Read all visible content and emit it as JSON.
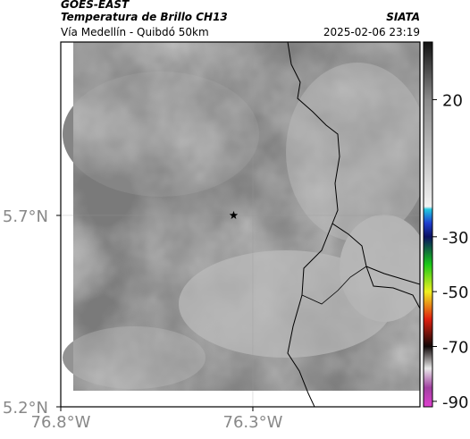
{
  "chart_data": {
    "type": "map",
    "title": "GOES-EAST",
    "subtitle": "Temperatura de Brillo CH13",
    "source": "SIATA",
    "region": "Vía Medellín - Quibdó 50km",
    "timestamp": "2025-02-06 23:19",
    "xlim": [
      -76.8,
      -75.865
    ],
    "ylim": [
      5.2,
      6.153
    ],
    "xticks": [
      {
        "value": -76.8,
        "label": "76.8°W"
      },
      {
        "value": -76.3,
        "label": "76.3°W"
      }
    ],
    "yticks": [
      {
        "value": 5.2,
        "label": "5.2°N"
      },
      {
        "value": 5.7,
        "label": "5.7°N"
      }
    ],
    "grid": true,
    "marker": {
      "lon": -76.35,
      "lat": 5.7
    },
    "clim": [
      -92,
      41
    ],
    "cticks": [
      20,
      -30,
      -50,
      -70,
      -90
    ],
    "colormap": [
      {
        "value": 41,
        "color": "#111111"
      },
      {
        "value": 20,
        "color": "#8a8a8a"
      },
      {
        "value": -19,
        "color": "#f2f2f2"
      },
      {
        "value": -20,
        "color": "#22c8e0"
      },
      {
        "value": -25,
        "color": "#1f3fd0"
      },
      {
        "value": -30,
        "color": "#0a1060"
      },
      {
        "value": -40,
        "color": "#18c818"
      },
      {
        "value": -50,
        "color": "#f0f020"
      },
      {
        "value": -60,
        "color": "#e02010"
      },
      {
        "value": -70,
        "color": "#100808"
      },
      {
        "value": -78,
        "color": "#e8e8e8"
      },
      {
        "value": -85,
        "color": "#a040a0"
      },
      {
        "value": -92,
        "color": "#e040d0"
      }
    ]
  }
}
